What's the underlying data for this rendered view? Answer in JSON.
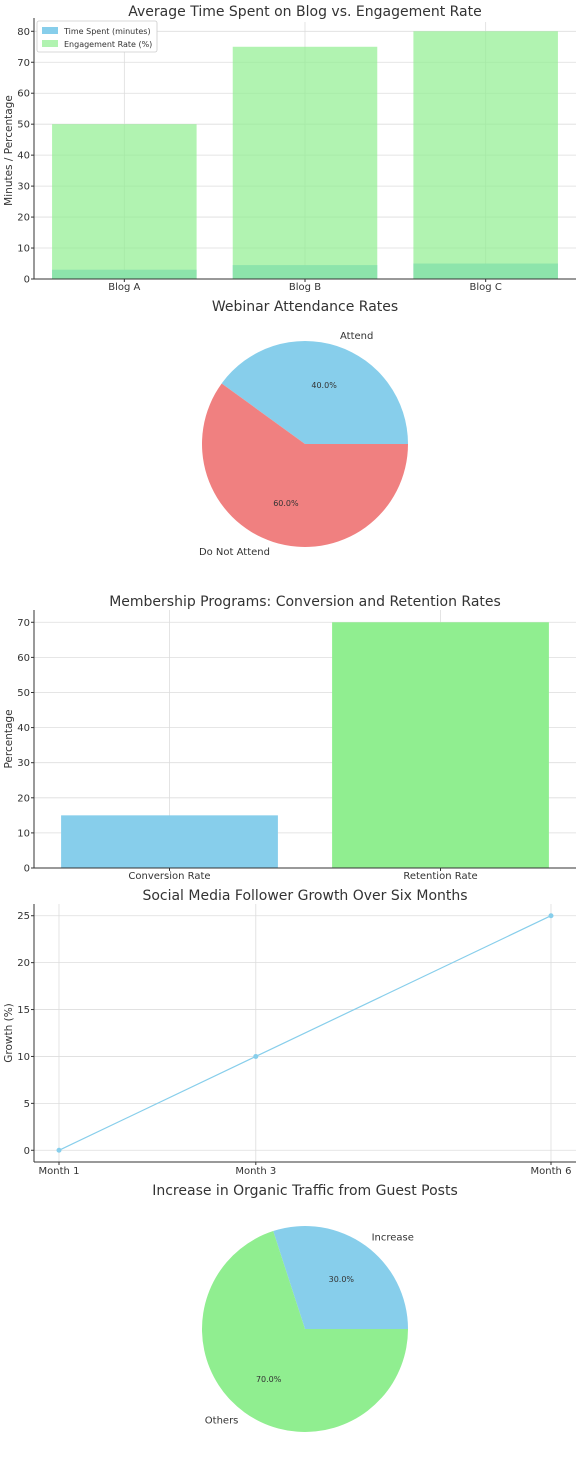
{
  "chart_data": [
    {
      "type": "bar",
      "title": "Average Time Spent on Blog vs. Engagement Rate",
      "ylabel": "Minutes / Percentage",
      "xlabel": "",
      "categories": [
        "Blog A",
        "Blog B",
        "Blog C"
      ],
      "series": [
        {
          "name": "Time Spent (minutes)",
          "values": [
            3,
            4.5,
            5
          ],
          "color": "#87ceeb"
        },
        {
          "name": "Engagement Rate (%)",
          "values": [
            50,
            75,
            80
          ],
          "color": "#90ee90"
        }
      ],
      "ylim": [
        0,
        83
      ],
      "yticks": [
        0,
        10,
        20,
        30,
        40,
        50,
        60,
        70,
        80
      ],
      "legend": "top-left",
      "grid": true
    },
    {
      "type": "pie",
      "title": "Webinar Attendance Rates",
      "labels": [
        "Attend",
        "Do Not Attend"
      ],
      "values": [
        40,
        60
      ],
      "pct_labels": [
        "40.0%",
        "60.0%"
      ],
      "colors": [
        "#87ceeb",
        "#f08080"
      ]
    },
    {
      "type": "bar",
      "title": "Membership Programs: Conversion and Retention Rates",
      "ylabel": "Percentage",
      "xlabel": "",
      "categories": [
        "Conversion Rate",
        "Retention Rate"
      ],
      "values": [
        15,
        70
      ],
      "colors": [
        "#87ceeb",
        "#90ee90"
      ],
      "ylim": [
        0,
        73.5
      ],
      "yticks": [
        0,
        10,
        20,
        30,
        40,
        50,
        60,
        70
      ],
      "grid": true
    },
    {
      "type": "line",
      "title": "Social Media Follower Growth Over Six Months",
      "ylabel": "Growth (%)",
      "xlabel": "",
      "x": [
        "Month 1",
        "Month 3",
        "Month 6"
      ],
      "y": [
        0,
        10,
        25
      ],
      "color": "#87ceeb",
      "ylim": [
        -1.25,
        26.25
      ],
      "yticks": [
        0,
        5,
        10,
        15,
        20,
        25
      ],
      "grid": true
    },
    {
      "type": "pie",
      "title": "Increase in Organic Traffic from Guest Posts",
      "labels": [
        "Increase",
        "Others"
      ],
      "values": [
        30,
        70
      ],
      "pct_labels": [
        "30.0%",
        "70.0%"
      ],
      "colors": [
        "#87ceeb",
        "#90ee90"
      ]
    }
  ]
}
